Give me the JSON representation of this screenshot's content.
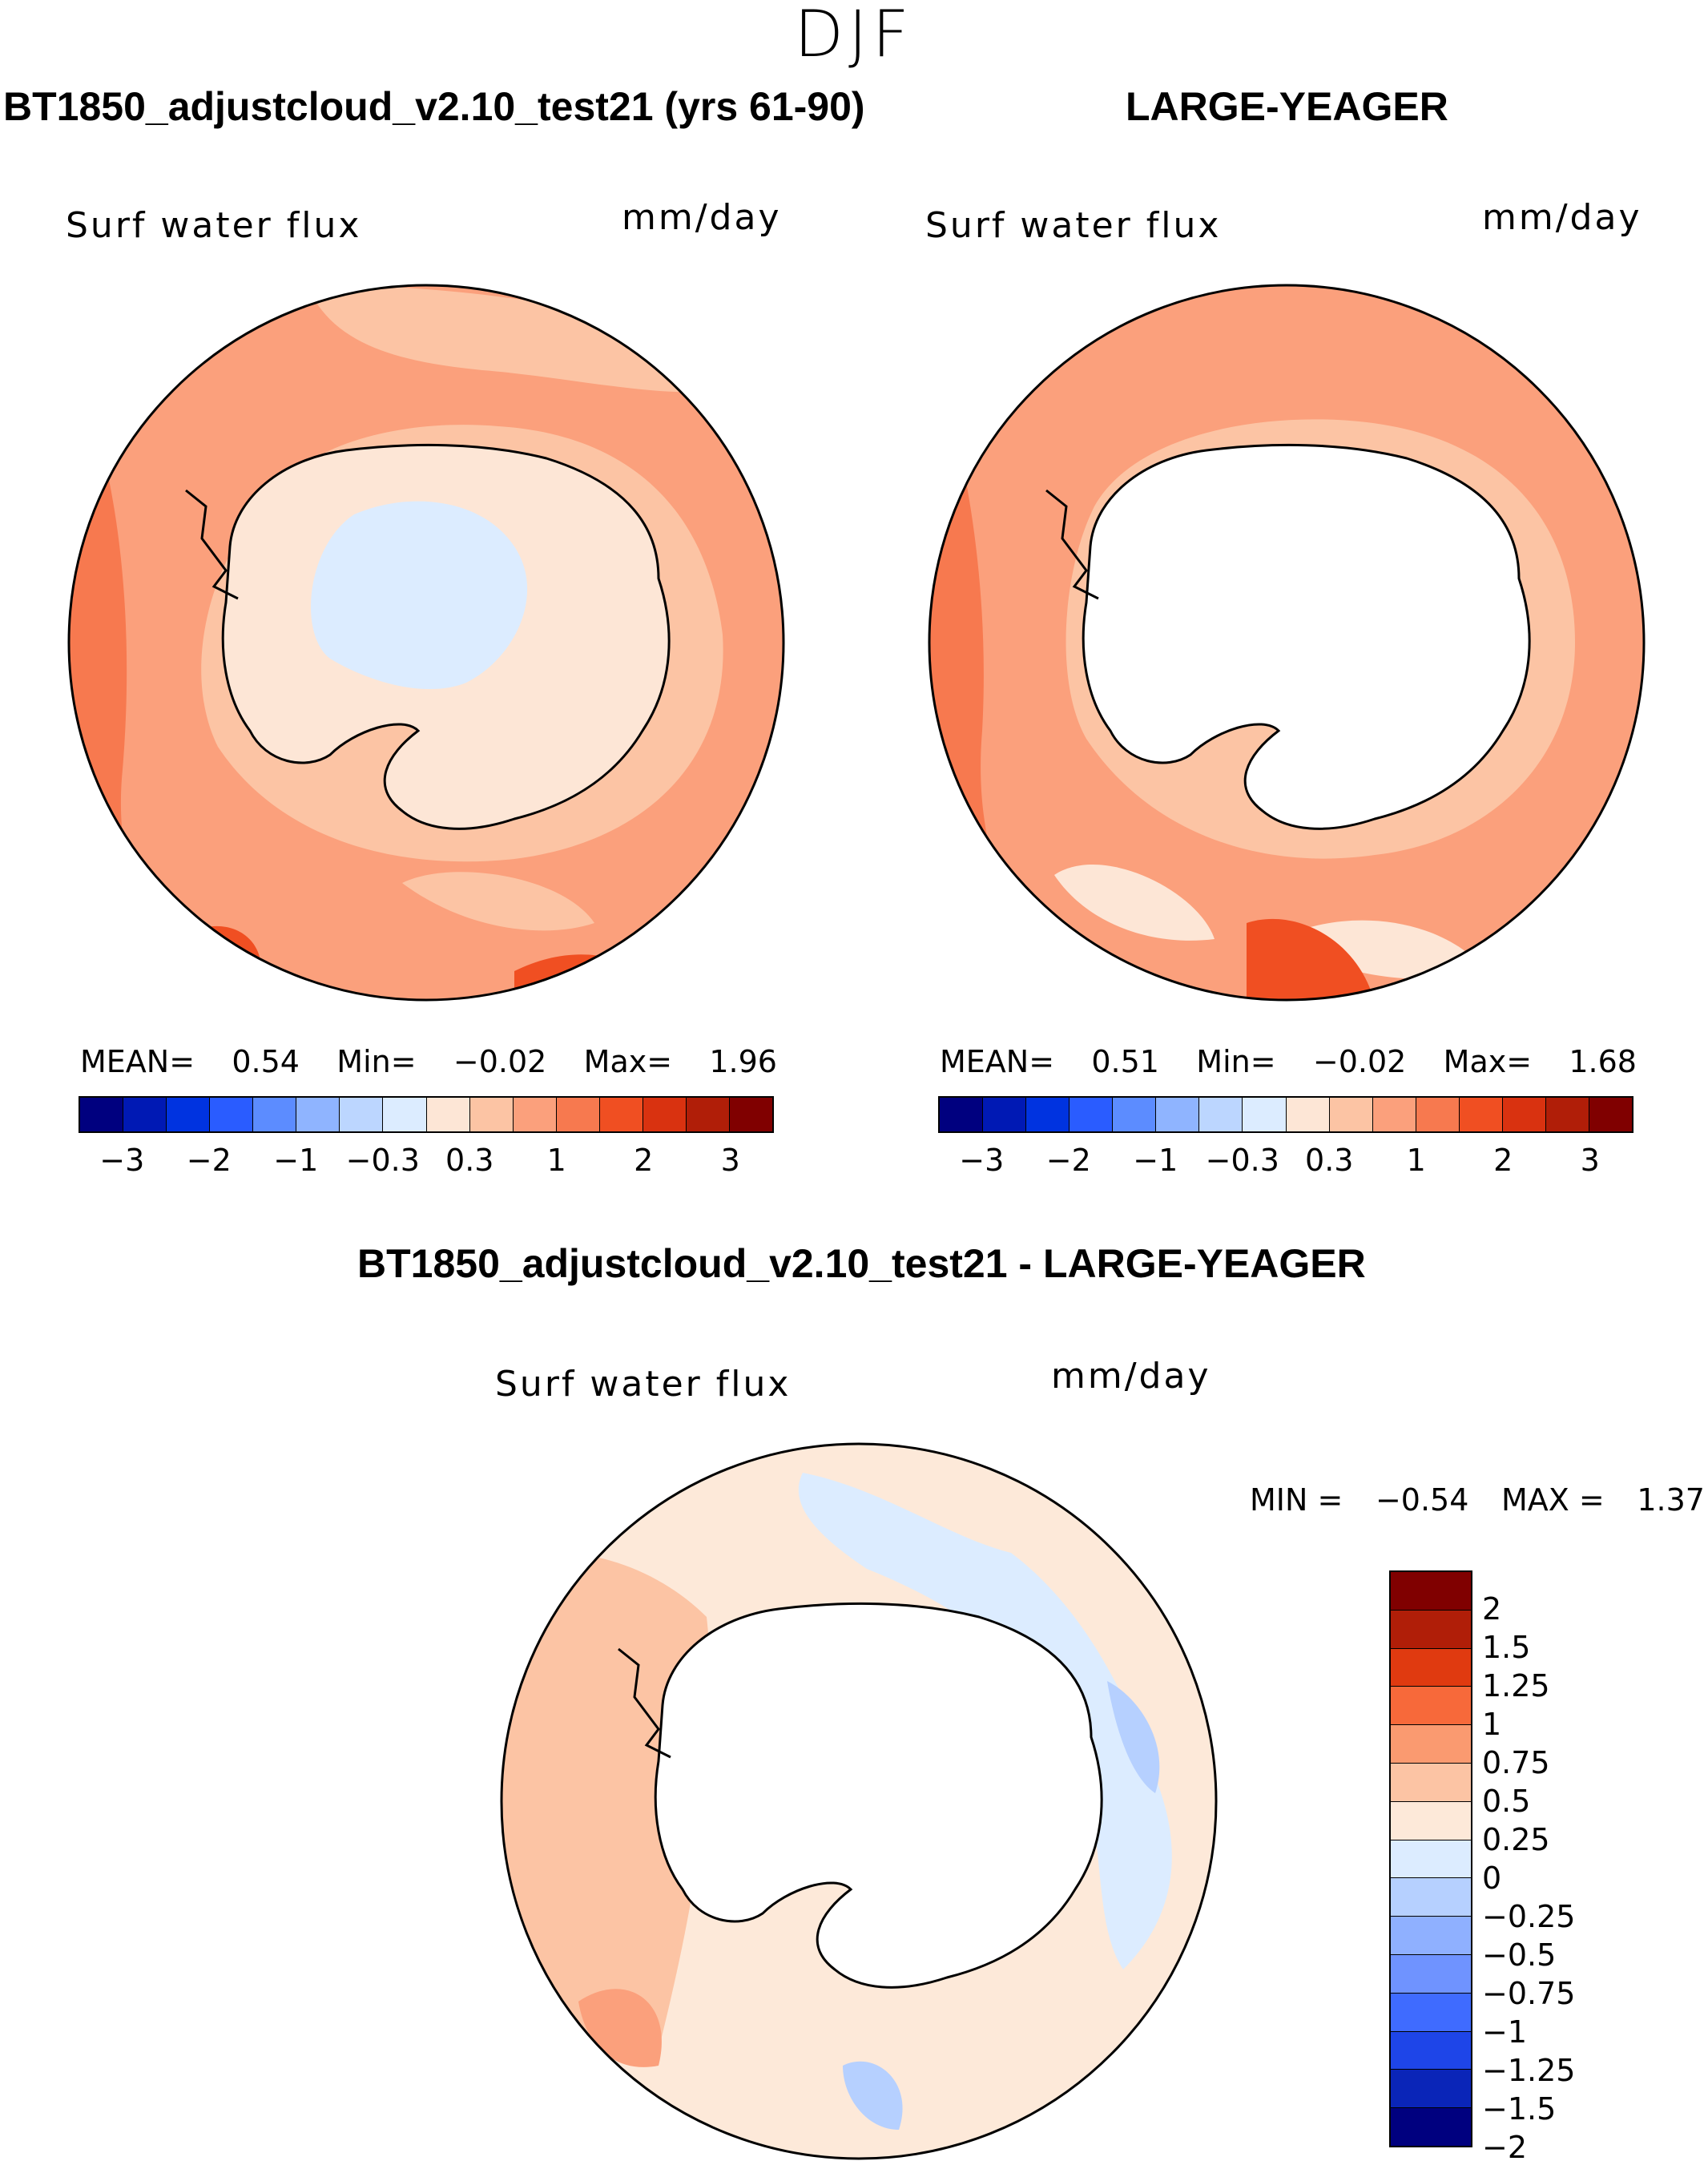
{
  "season": "DJF",
  "panels": {
    "top_left": {
      "title": "BT1850_adjustcloud_v2.10_test21 (yrs 61-90)",
      "variable": "Surf  water  flux",
      "units": "mm/day",
      "mean_label": "MEAN=",
      "mean_value": "0.54",
      "min_label": "Min=",
      "min_value": "−0.02",
      "max_label": "Max=",
      "max_value": "1.96"
    },
    "top_right": {
      "title": "LARGE-YEAGER",
      "variable": "Surf  water  flux",
      "units": "mm/day",
      "mean_label": "MEAN=",
      "mean_value": "0.51",
      "min_label": "Min=",
      "min_value": "−0.02",
      "max_label": "Max=",
      "max_value": "1.68"
    },
    "bottom": {
      "title": "BT1850_adjustcloud_v2.10_test21 - LARGE-YEAGER",
      "variable": "Surf  water  flux",
      "units": "mm/day",
      "min_label": "MIN =",
      "min_value": "−0.54",
      "max_label": "MAX =",
      "max_value": "1.37"
    }
  },
  "colorbar_top": {
    "colors": [
      "#00007f",
      "#0019b4",
      "#0033e0",
      "#2a5cff",
      "#5c8cff",
      "#8fb4ff",
      "#bcd6ff",
      "#dcecff",
      "#fde6d6",
      "#fcc4a4",
      "#fba07c",
      "#f7794f",
      "#f04f22",
      "#d93210",
      "#b01e08",
      "#800000"
    ],
    "tick_labels": [
      "−3",
      "−2",
      "−1",
      "−0.3",
      "0.3",
      "1",
      "2",
      "3"
    ]
  },
  "colorbar_top_right": {
    "colors": [
      "#00007f",
      "#0019b4",
      "#0033e0",
      "#2a5cff",
      "#5c8cff",
      "#8fb4ff",
      "#bcd6ff",
      "#dcecff",
      "#fde6d6",
      "#fcc4a4",
      "#fba07c",
      "#f7794f",
      "#f04f22",
      "#d93210",
      "#b01e08",
      "#800000"
    ],
    "tick_labels": [
      "−3",
      "−2",
      "−1",
      "−0.3",
      "0.3",
      "1",
      "2",
      "3"
    ]
  },
  "colorbar_diff": {
    "colors": [
      "#800000",
      "#b01e08",
      "#e03a10",
      "#f7693a",
      "#fa9a70",
      "#fcc4a4",
      "#fde9d9",
      "#dcecff",
      "#b6d0ff",
      "#8fb0ff",
      "#6f93ff",
      "#3f6bff",
      "#1e45e8",
      "#0a25b8",
      "#00007f"
    ],
    "tick_labels": [
      "2",
      "1.5",
      "1.25",
      "1",
      "0.75",
      "0.5",
      "0.25",
      "0",
      "−0.25",
      "−0.5",
      "−0.75",
      "−1",
      "−1.25",
      "−1.5",
      "−2"
    ]
  },
  "map_colors": {
    "ocean_orange": "#f7794f",
    "ocean_mid": "#fba07c",
    "ocean_light": "#fcc4a4",
    "pale": "#fde6d6",
    "ice_blue": "#dcecff",
    "diff_orange": "#fcc4a4",
    "diff_pale": "#fde9d9",
    "diff_blue": "#dcecff",
    "diff_blue2": "#b6d0ff"
  }
}
